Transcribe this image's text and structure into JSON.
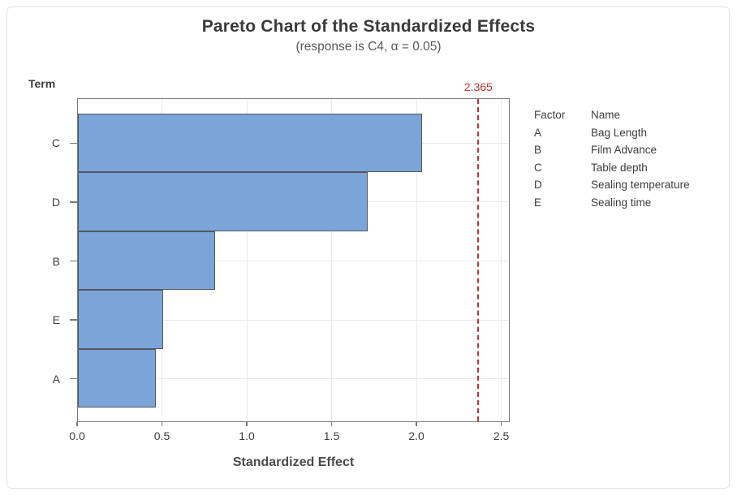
{
  "chart_data": {
    "type": "bar",
    "orientation": "horizontal",
    "title": "Pareto Chart of the Standardized Effects",
    "subtitle": "(response is C4, α = 0.05)",
    "xlabel": "Standardized Effect",
    "ylabel": "Term",
    "categories": [
      "C",
      "D",
      "B",
      "E",
      "A"
    ],
    "values": [
      2.03,
      1.71,
      0.81,
      0.5,
      0.46
    ],
    "x_ticks": [
      0.0,
      0.5,
      1.0,
      1.5,
      2.0,
      2.5
    ],
    "xlim": [
      0,
      2.55
    ],
    "grid": true,
    "reference_line": {
      "value": 2.365,
      "label": "2.365",
      "color": "#c0342f",
      "style": "dashed"
    },
    "legend": {
      "position": "right",
      "headers": [
        "Factor",
        "Name"
      ],
      "rows": [
        {
          "factor": "A",
          "name": "Bag Length"
        },
        {
          "factor": "B",
          "name": "Film Advance"
        },
        {
          "factor": "C",
          "name": "Table depth"
        },
        {
          "factor": "D",
          "name": "Sealing temperature"
        },
        {
          "factor": "E",
          "name": "Sealing time"
        }
      ]
    },
    "colors": {
      "bar_fill": "#7ba4d9",
      "bar_border": "#53585e",
      "frame": "#7a7a7a",
      "gridline": "#e9e9e9",
      "reference": "#c0342f"
    }
  }
}
